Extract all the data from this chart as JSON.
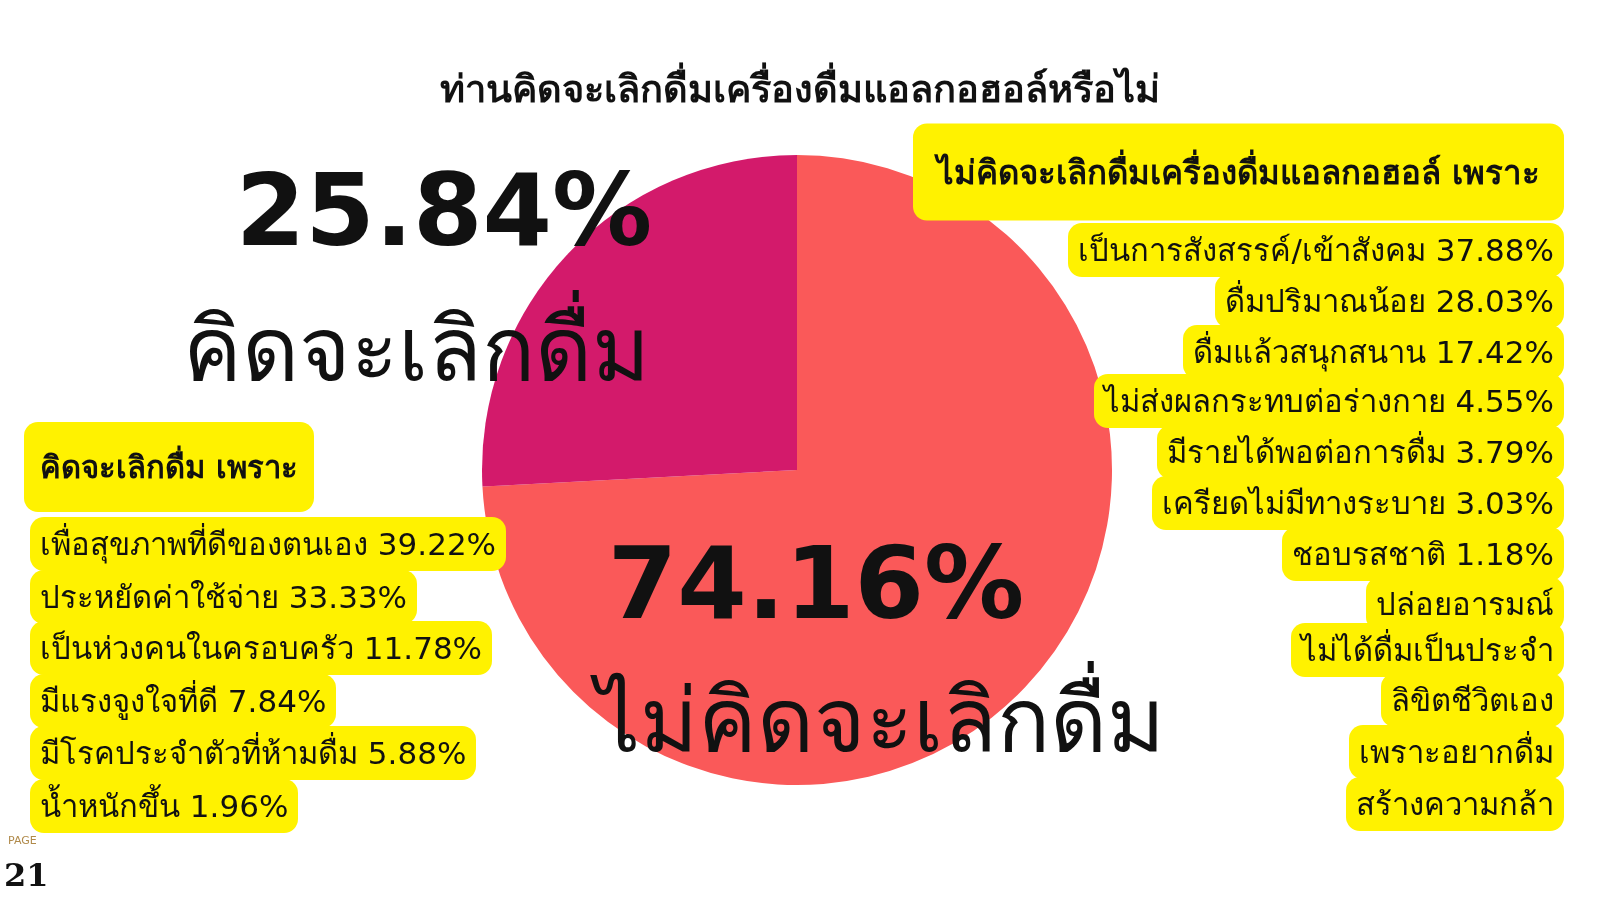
{
  "chart_data": {
    "type": "pie",
    "title": "ท่านคิดจะเลิกดื่มเครื่องดื่มแอลกอฮอล์หรือไม่",
    "categories": [
      "ไม่คิดจะเลิกดื่ม",
      "คิดจะเลิกดื่ม"
    ],
    "values": [
      74.16,
      25.84
    ],
    "colors": [
      "#fa5959",
      "#d31a6b"
    ],
    "value_labels": [
      "74.16%",
      "25.84%"
    ],
    "legend": false,
    "annotations": [
      "ไม่คิดจะเลิกดื่มเครื่องดื่มแอลกอฮอล์  เพราะ",
      "เป็นการสังสรรค์/เข้าสังคม 37.88%",
      "ดื่มปริมาณน้อย 28.03%",
      "ดื่มแล้วสนุกสนาน 17.42%",
      "ไม่ส่งผลกระทบต่อร่างกาย 4.55%",
      "มีรายได้พอต่อการดื่ม 3.79%",
      "เครียดไม่มีทางระบาย 3.03%",
      "ชอบรสชาติ 1.18%",
      "ปล่อยอารมณ์",
      "ไม่ได้ดื่มเป็นประจำ",
      "ลิขิตชีวิตเอง",
      "เพราะอยากดื่ม",
      "สร้างความกล้า",
      "คิดจะเลิกดื่ม เพราะ",
      "เพื่อสุขภาพที่ดีของตนเอง 39.22%",
      "ประหยัดค่าใช้จ่าย 33.33%",
      "เป็นห่วงคนในครอบครัว 11.78%",
      "มีแรงจูงใจที่ดี 7.84%",
      "มีโรคประจำตัวที่ห้ามดื่ม 5.88%",
      "น้ำหนักขึ้น 1.96%",
      "PAGE",
      "21"
    ]
  }
}
